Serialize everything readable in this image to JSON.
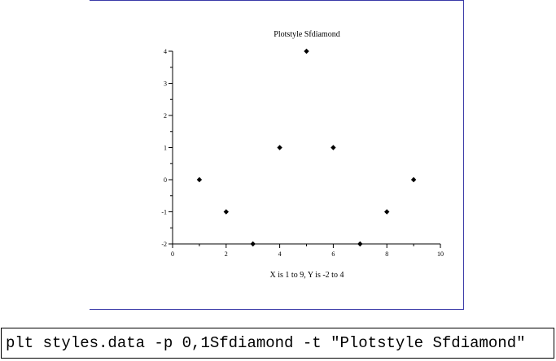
{
  "chart_data": {
    "type": "scatter",
    "title": "Plotstyle Sfdiamond",
    "xlabel": "X is 1 to 9, Y is -2 to 4",
    "ylabel": "",
    "xlim": [
      0,
      10
    ],
    "ylim": [
      -2,
      4
    ],
    "x_ticks": [
      0,
      2,
      4,
      6,
      8,
      10
    ],
    "y_ticks": [
      -2,
      -1,
      0,
      1,
      2,
      3,
      4
    ],
    "grid": false,
    "marker": "filled-diamond",
    "marker_color": "#000000",
    "series": [
      {
        "x": [
          1,
          2,
          3,
          4,
          5,
          6,
          7,
          8,
          9
        ],
        "y": [
          0,
          -1,
          -2,
          1,
          4,
          1,
          -2,
          -1,
          0
        ]
      }
    ]
  },
  "command": {
    "text": "plt styles.data -p 0,1Sfdiamond -t \"Plotstyle Sfdiamond\""
  }
}
